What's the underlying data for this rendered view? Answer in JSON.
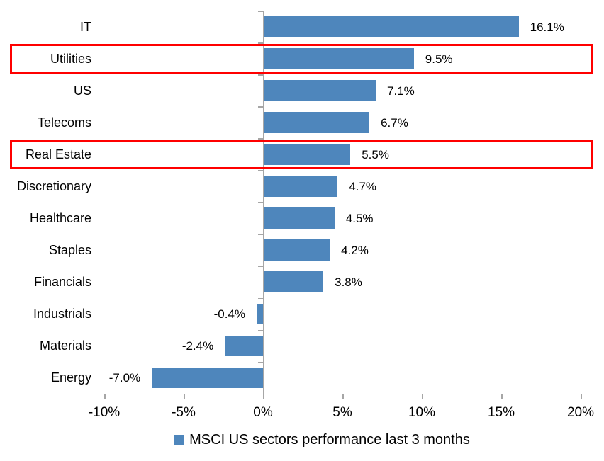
{
  "chart_data": {
    "type": "bar",
    "orientation": "horizontal",
    "title": "",
    "categories": [
      "IT",
      "Utilities",
      "US",
      "Telecoms",
      "Real Estate",
      "Discretionary",
      "Healthcare",
      "Staples",
      "Financials",
      "Industrials",
      "Materials",
      "Energy"
    ],
    "values": [
      16.1,
      9.5,
      7.1,
      6.7,
      5.5,
      4.7,
      4.5,
      4.2,
      3.8,
      -0.4,
      -2.4,
      -7.0
    ],
    "data_labels": [
      "16.1%",
      "9.5%",
      "7.1%",
      "6.7%",
      "5.5%",
      "4.7%",
      "4.5%",
      "4.2%",
      "3.8%",
      "-0.4%",
      "-2.4%",
      "-7.0%"
    ],
    "xlabel": "",
    "ylabel": "",
    "x_ticks": [
      "-10%",
      "-5%",
      "0%",
      "5%",
      "10%",
      "15%",
      "20%"
    ],
    "x_tick_values": [
      -10,
      -5,
      0,
      5,
      10,
      15,
      20
    ],
    "xlim": [
      -10,
      20
    ],
    "grid": false,
    "legend": {
      "label": "MSCI US sectors performance last 3 months",
      "position": "bottom"
    },
    "highlighted_categories": [
      "Utilities",
      "Real Estate"
    ],
    "colors": {
      "bar": "#4E86BC",
      "axis": "#A6A6A6",
      "highlight_border": "#FF0000",
      "text": "#000000"
    }
  }
}
